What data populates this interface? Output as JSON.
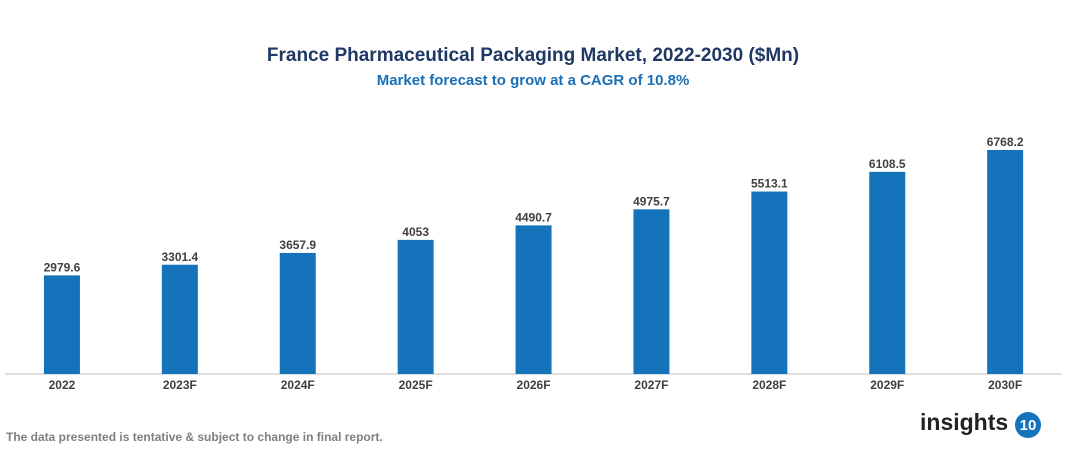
{
  "chart_data": {
    "type": "bar",
    "title": "France Pharmaceutical Packaging Market, 2022-2030 ($Mn)",
    "subtitle": "Market forecast to grow at a CAGR of 10.8%",
    "categories": [
      "2022",
      "2023F",
      "2024F",
      "2025F",
      "2026F",
      "2027F",
      "2028F",
      "2029F",
      "2030F"
    ],
    "values": [
      2979.6,
      3301.4,
      3657.9,
      4053,
      4490.7,
      4975.7,
      5513.1,
      6108.5,
      6768.2
    ],
    "color": "#1473bb",
    "footnote": "The data presented is tentative & subject to change in final report.",
    "logo": {
      "text": "insights",
      "badge": "10"
    }
  }
}
